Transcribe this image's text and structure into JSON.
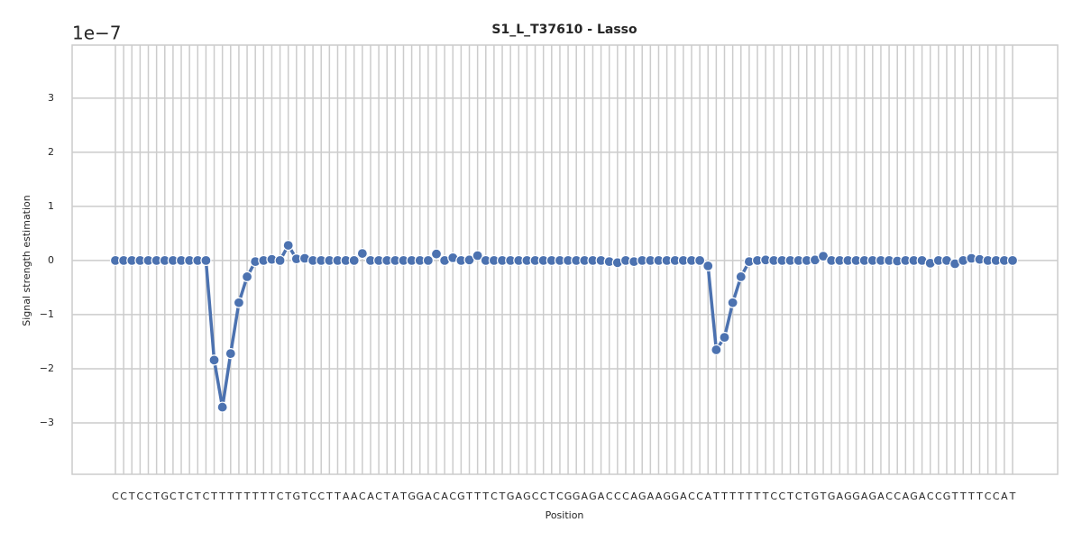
{
  "chart_data": {
    "type": "line",
    "title": "S1_L_T37610 - Lasso",
    "xlabel": "Position",
    "ylabel": "Signal strength estimation",
    "offset_text": "1e−7",
    "categories": [
      "C",
      "C",
      "T",
      "C",
      "C",
      "T",
      "G",
      "C",
      "T",
      "C",
      "T",
      "C",
      "T",
      "T",
      "T",
      "T",
      "T",
      "T",
      "T",
      "T",
      "C",
      "T",
      "G",
      "T",
      "C",
      "C",
      "T",
      "T",
      "A",
      "A",
      "C",
      "A",
      "C",
      "T",
      "A",
      "T",
      "G",
      "G",
      "A",
      "C",
      "A",
      "C",
      "G",
      "T",
      "T",
      "T",
      "C",
      "T",
      "G",
      "A",
      "G",
      "C",
      "C",
      "T",
      "C",
      "G",
      "G",
      "A",
      "G",
      "A",
      "C",
      "C",
      "C",
      "A",
      "G",
      "A",
      "A",
      "G",
      "G",
      "A",
      "C",
      "C",
      "A",
      "T",
      "T",
      "T",
      "T",
      "T",
      "T",
      "T",
      "C",
      "C",
      "T",
      "C",
      "T",
      "G",
      "T",
      "G",
      "A",
      "G",
      "G",
      "A",
      "G",
      "A",
      "C",
      "C",
      "A",
      "G",
      "A",
      "C",
      "C",
      "G",
      "T",
      "T",
      "T",
      "T",
      "C",
      "C",
      "A",
      "T"
    ],
    "values": [
      0,
      0,
      0,
      0,
      0,
      0,
      0,
      0,
      0,
      0,
      0,
      0,
      -1.84,
      -2.71,
      -1.72,
      -0.78,
      -0.3,
      -0.02,
      0,
      0.02,
      0,
      0.28,
      0.03,
      0.04,
      0,
      0,
      0,
      0,
      0,
      0,
      0.13,
      0,
      0,
      0,
      0,
      0,
      0,
      0,
      0,
      0.12,
      0,
      0.05,
      0,
      0.01,
      0.09,
      0,
      0,
      0,
      0,
      0,
      0,
      0,
      0,
      0,
      0,
      0,
      0,
      0,
      0,
      0,
      -0.02,
      -0.04,
      0,
      -0.02,
      0,
      0,
      0,
      0,
      0,
      0,
      0,
      0,
      -0.1,
      -1.65,
      -1.42,
      -0.78,
      -0.3,
      -0.02,
      0,
      0.01,
      0,
      0,
      0,
      0,
      0,
      0.01,
      0.08,
      0,
      0,
      0,
      0,
      0,
      0,
      0,
      0,
      -0.01,
      0,
      0,
      0,
      -0.05,
      0,
      0,
      -0.06,
      0,
      0.04,
      0.02,
      0,
      0,
      0,
      0
    ],
    "color": "#4c72b0",
    "ylim": [
      -3.95,
      3.98
    ],
    "yticks": [
      {
        "value": -3,
        "label": "−3"
      },
      {
        "value": -2,
        "label": "−2"
      },
      {
        "value": -1,
        "label": "−1"
      },
      0,
      1,
      2,
      3
    ],
    "grid": true
  }
}
